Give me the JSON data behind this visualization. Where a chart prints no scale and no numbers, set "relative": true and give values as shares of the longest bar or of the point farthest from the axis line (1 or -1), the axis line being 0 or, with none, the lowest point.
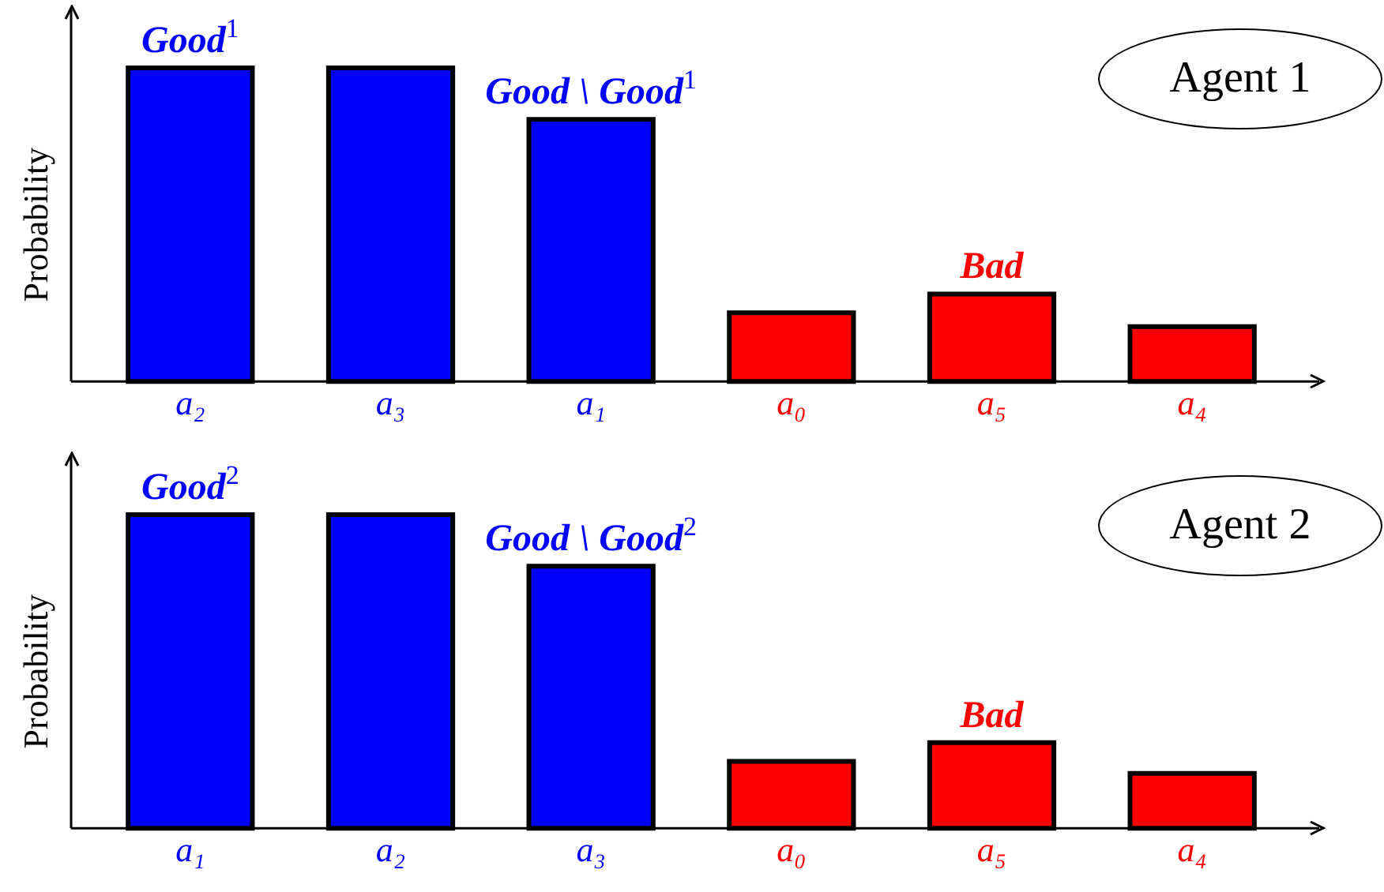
{
  "chart_data": [
    {
      "type": "bar",
      "relative": true,
      "ylabel": "Probability",
      "categories": [
        "a₂",
        "a₃",
        "a₁",
        "a₀",
        "a₅",
        "a₄"
      ],
      "values": [
        1,
        1,
        0.836,
        0.219,
        0.279,
        0.175
      ],
      "colors": [
        "#0000ff",
        "#0000ff",
        "#0000ff",
        "#ff0000",
        "#ff0000",
        "#ff0000"
      ],
      "tick_labels": "x",
      "grid": false,
      "legend": false,
      "annotations": [
        {
          "text": "Good$^{1}$",
          "x": "a₂",
          "y": 1
        },
        {
          "text": "Good \\ Good$^{1}$",
          "x": "a₁",
          "y": 0.836
        },
        {
          "text": "Bad",
          "x": "a₅",
          "y": 0.279
        },
        "Agent 1"
      ]
    },
    {
      "type": "bar",
      "relative": true,
      "ylabel": "Probability",
      "categories": [
        "a₁",
        "a₂",
        "a₃",
        "a₀",
        "a₅",
        "a₄"
      ],
      "values": [
        1,
        1,
        0.836,
        0.213,
        0.273,
        0.175
      ],
      "colors": [
        "#0000ff",
        "#0000ff",
        "#0000ff",
        "#ff0000",
        "#ff0000",
        "#ff0000"
      ],
      "tick_labels": "x",
      "grid": false,
      "legend": false,
      "annotations": [
        {
          "text": "Good$^{2}$",
          "x": "a₁",
          "y": 1
        },
        {
          "text": "Good \\ Good$^{2}$",
          "x": "a₃",
          "y": 0.836
        },
        {
          "text": "Bad",
          "x": "a₅",
          "y": 0.273
        },
        "Agent 2"
      ]
    }
  ]
}
